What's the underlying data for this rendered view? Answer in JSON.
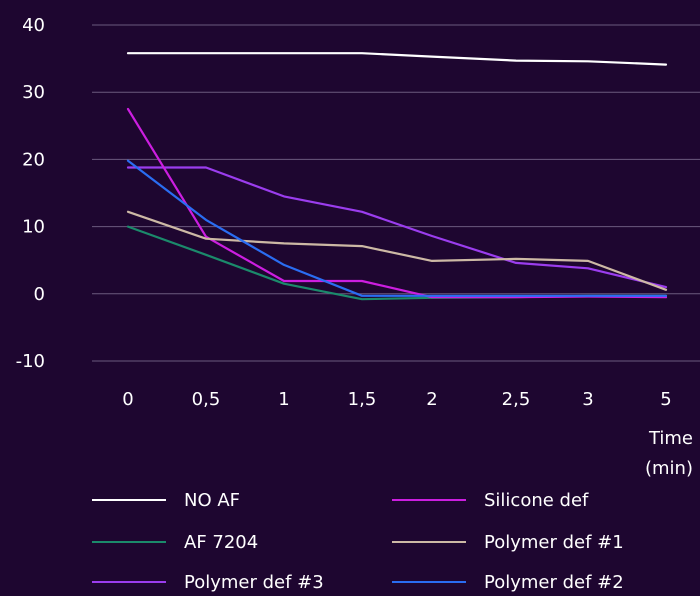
{
  "chart_data": {
    "type": "line",
    "title": "",
    "xlabel": "Time (min)",
    "xlabel_lines": [
      "Time",
      "(min)"
    ],
    "ylabel": "",
    "x": [
      "0",
      "0,5",
      "1",
      "1,5",
      "2",
      "2,5",
      "3",
      "5"
    ],
    "yticks": [
      "40",
      "30",
      "20",
      "10",
      "0",
      "-10"
    ],
    "ylim": [
      -10,
      40
    ],
    "grid": true,
    "legend_position": "bottom",
    "series": [
      {
        "name": "NO AF",
        "color": "#ffffff",
        "values": [
          35.8,
          35.8,
          35.8,
          35.8,
          35.3,
          34.7,
          34.6,
          34.1
        ]
      },
      {
        "name": "AF 7204",
        "color": "#1b8a6b",
        "values": [
          10.0,
          5.8,
          1.5,
          -0.8,
          -0.6,
          -0.5,
          -0.3,
          -0.3
        ]
      },
      {
        "name": "Polymer def #3",
        "color": "#9b3dee",
        "values": [
          18.8,
          18.8,
          14.5,
          12.2,
          8.6,
          4.6,
          3.8,
          1.0
        ]
      },
      {
        "name": "Silicone def",
        "color": "#cc1ee0",
        "values": [
          27.5,
          8.5,
          1.9,
          1.9,
          -0.5,
          -0.5,
          -0.4,
          -0.5
        ]
      },
      {
        "name": "Polymer def #1",
        "color": "#cdb9a5",
        "values": [
          12.2,
          8.2,
          7.5,
          7.1,
          4.9,
          5.2,
          4.9,
          0.6
        ]
      },
      {
        "name": "Polymer def #2",
        "color": "#2a6df2",
        "values": [
          19.8,
          11.0,
          4.3,
          -0.3,
          -0.3,
          -0.3,
          -0.3,
          -0.3
        ]
      }
    ]
  }
}
